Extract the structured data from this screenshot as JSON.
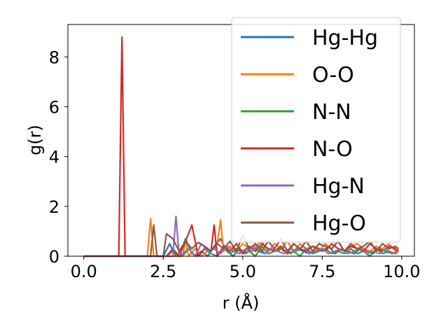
{
  "chart_data": {
    "type": "line",
    "xlabel": "r (Å)",
    "ylabel": "g(r)",
    "xlim": [
      -0.5,
      10.4
    ],
    "ylim": [
      0,
      9.3
    ],
    "xticks": [
      "0.0",
      "2.5",
      "5.0",
      "7.5",
      "10.0"
    ],
    "xtick_values": [
      0,
      2.5,
      5,
      7.5,
      10
    ],
    "yticks": [
      "0",
      "2",
      "4",
      "6",
      "8"
    ],
    "ytick_values": [
      0,
      2,
      4,
      6,
      8
    ],
    "grid": false,
    "legend_position": "upper right",
    "series": [
      {
        "name": "Hg-Hg",
        "color": "#1f77b4",
        "x": [
          0,
          2.3,
          2.5,
          2.7,
          2.9,
          3.1,
          3.3,
          3.5,
          3.7,
          3.9,
          4.1,
          4.3,
          4.5,
          4.7,
          4.9,
          5.1,
          5.3,
          5.5,
          5.7,
          5.9,
          6.1,
          6.3,
          6.5,
          6.7,
          6.9,
          7.1,
          7.3,
          7.5,
          7.7,
          7.9,
          8.1,
          8.3,
          8.5,
          8.7,
          8.9,
          9.1,
          9.3,
          9.5,
          9.7,
          9.9
        ],
        "y": [
          0,
          0,
          0,
          0.5,
          0,
          0,
          0.3,
          0,
          0.2,
          0,
          0.4,
          0.7,
          0.2,
          0,
          0.3,
          0.1,
          0.4,
          0.2,
          0.1,
          0.3,
          0.2,
          0.4,
          0.1,
          0.3,
          0.2,
          0.1,
          0.3,
          0.2,
          0.4,
          0.1,
          0.3,
          0.2,
          0.1,
          0.3,
          0.2,
          0.1,
          0.3,
          0.2,
          0.1,
          0.2
        ]
      },
      {
        "name": "O-O",
        "color": "#ff7f0e",
        "x": [
          0,
          1.9,
          2.0,
          2.1,
          2.2,
          3.1,
          3.2,
          3.3,
          3.5,
          3.7,
          3.9,
          4.1,
          4.2,
          4.3,
          4.4,
          4.6,
          4.8,
          5.0,
          5.2,
          5.4,
          5.6,
          5.8,
          6.0,
          6.2,
          6.4,
          6.6,
          6.8,
          7.0,
          7.2,
          7.4,
          7.6,
          7.8,
          8.0,
          8.2,
          8.4,
          8.6,
          8.8,
          9.0,
          9.2,
          9.4,
          9.6,
          9.8,
          9.9
        ],
        "y": [
          0,
          0,
          0,
          1.5,
          0,
          0,
          0.6,
          0,
          0.3,
          0,
          0.2,
          0.3,
          0.5,
          1.45,
          0.2,
          0.4,
          0.2,
          0.5,
          0.3,
          0.4,
          0.6,
          0.2,
          0.5,
          0.3,
          0.6,
          0.2,
          0.5,
          0.3,
          0.4,
          0.2,
          0.5,
          0.3,
          0.6,
          0.2,
          0.4,
          0.5,
          0.3,
          0.2,
          0.4,
          0.3,
          0.5,
          0.2,
          0.3
        ]
      },
      {
        "name": "N-N",
        "color": "#2ca02c",
        "x": [
          0,
          2.4,
          2.6,
          2.8,
          3.0,
          3.2,
          3.4,
          3.6,
          3.8,
          4.0,
          4.2,
          4.4,
          4.6,
          4.8,
          5.0,
          5.2,
          5.4,
          5.6,
          5.8,
          6.0,
          6.2,
          6.4,
          6.6,
          6.8,
          7.0,
          7.2,
          7.4,
          7.6,
          7.8,
          8.0,
          8.2,
          8.4,
          8.6,
          8.8,
          9.0,
          9.2,
          9.4,
          9.6,
          9.8,
          9.9
        ],
        "y": [
          0,
          0,
          0,
          0.2,
          0,
          0.7,
          0.1,
          0,
          0.3,
          0.1,
          0,
          0.4,
          0.1,
          0.3,
          0.1,
          0.2,
          0,
          0.4,
          0.1,
          0.2,
          0.3,
          0.1,
          0.2,
          0,
          0.3,
          0.1,
          0.2,
          0.3,
          0.1,
          0.2,
          0.1,
          0.3,
          0.1,
          0.2,
          0,
          0.3,
          0.1,
          0.2,
          0.1,
          0.2
        ]
      },
      {
        "name": "N-O",
        "color": "#d62728",
        "x": [
          0,
          1.1,
          1.2,
          1.3,
          2.4,
          2.6,
          2.8,
          3.0,
          3.2,
          3.4,
          3.6,
          3.8,
          4.0,
          4.1,
          4.2,
          4.4,
          4.6,
          4.8,
          5.0,
          5.2,
          5.4,
          5.6,
          5.8,
          6.0,
          6.2,
          6.4,
          6.6,
          6.8,
          7.0,
          7.2,
          7.4,
          7.6,
          7.8,
          8.0,
          8.2,
          8.4,
          8.6,
          8.8,
          9.0,
          9.2,
          9.4,
          9.6,
          9.8,
          9.9
        ],
        "y": [
          0,
          0,
          8.8,
          0,
          0,
          0,
          0.3,
          0,
          0.6,
          1.25,
          0,
          0.3,
          0.2,
          1.25,
          0,
          0.4,
          0.2,
          0.5,
          0.1,
          0.4,
          0.2,
          0.5,
          0.3,
          0.2,
          0.4,
          0.1,
          0.5,
          0.3,
          0.2,
          0.4,
          0.3,
          0.2,
          0.5,
          0.3,
          0.2,
          0.4,
          0.3,
          0.2,
          0.5,
          0.3,
          0.2,
          0.4,
          0.3,
          0.2
        ]
      },
      {
        "name": "Hg-N",
        "color": "#9467bd",
        "x": [
          0,
          2.7,
          2.8,
          2.9,
          3.0,
          3.3,
          3.5,
          3.7,
          3.9,
          4.1,
          4.3,
          4.5,
          4.7,
          4.9,
          5.1,
          5.3,
          5.5,
          5.7,
          5.9,
          6.1,
          6.3,
          6.5,
          6.7,
          6.9,
          7.1,
          7.3,
          7.5,
          7.7,
          7.9,
          8.1,
          8.3,
          8.5,
          8.7,
          8.9,
          9.1,
          9.3,
          9.5,
          9.7,
          9.9
        ],
        "y": [
          0,
          0,
          0,
          1.6,
          0,
          0.3,
          0,
          0.5,
          0.2,
          0.3,
          0.1,
          0.4,
          0.2,
          0.1,
          0.3,
          0.2,
          0.4,
          0.1,
          0.3,
          0.2,
          0.1,
          0.3,
          0.2,
          0.4,
          0.1,
          0.2,
          0.3,
          0.1,
          0.2,
          0.3,
          0.1,
          0.2,
          0.3,
          0.1,
          0.2,
          0.1,
          0.3,
          0.1,
          0.2
        ]
      },
      {
        "name": "Hg-O",
        "color": "#8c564b",
        "x": [
          0,
          2.1,
          2.2,
          2.3,
          2.5,
          2.6,
          2.8,
          3.0,
          3.2,
          3.4,
          3.6,
          3.8,
          4.0,
          4.2,
          4.4,
          4.6,
          4.8,
          5.0,
          5.2,
          5.4,
          5.6,
          5.8,
          6.0,
          6.2,
          6.4,
          6.6,
          6.8,
          7.0,
          7.2,
          7.4,
          7.6,
          7.8,
          8.0,
          8.2,
          8.4,
          8.6,
          8.8,
          9.0,
          9.2,
          9.4,
          9.6,
          9.8,
          9.9
        ],
        "y": [
          0,
          0,
          1.25,
          0,
          0,
          0.9,
          0.7,
          0.2,
          0.6,
          0.3,
          0.55,
          0.4,
          0.2,
          0.5,
          0.3,
          0.6,
          0.2,
          0.85,
          0.3,
          0.5,
          0.2,
          0.6,
          0.3,
          0.7,
          0.2,
          0.5,
          0.3,
          0.6,
          0.2,
          0.5,
          0.4,
          0.3,
          0.6,
          0.2,
          0.5,
          0.3,
          0.4,
          0.6,
          0.2,
          0.5,
          0.3,
          0.4,
          0.3
        ]
      }
    ]
  }
}
